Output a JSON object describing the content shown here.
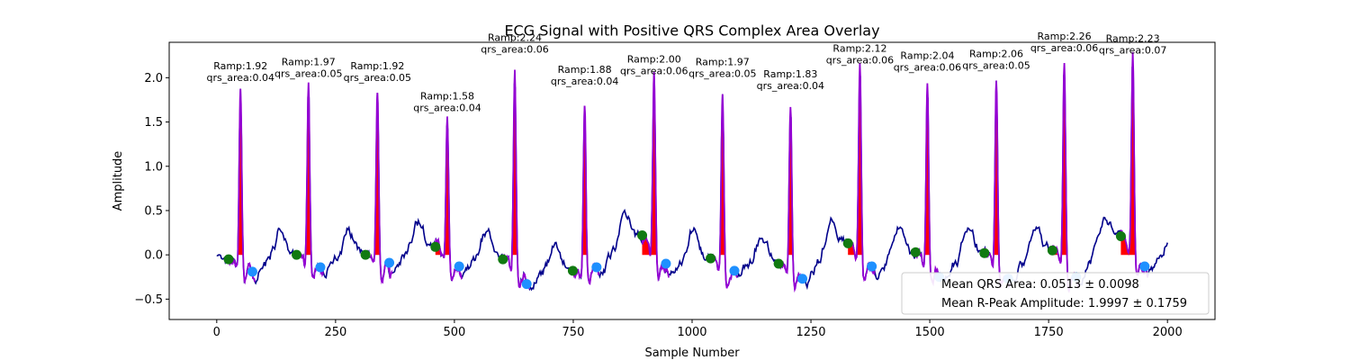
{
  "chart_data": {
    "type": "line",
    "title": "ECG Signal with Positive QRS Complex Area Overlay",
    "xlabel": "Sample Number",
    "ylabel": "Amplitude",
    "xlim": [
      -100,
      2100
    ],
    "ylim": [
      -0.73,
      2.4
    ],
    "xticks": [
      0,
      250,
      500,
      750,
      1000,
      1250,
      1500,
      1750,
      2000
    ],
    "yticks": [
      -0.5,
      0.0,
      0.5,
      1.0,
      1.5,
      2.0
    ],
    "ytick_labels": [
      "−0.5",
      "0.0",
      "0.5",
      "1.0",
      "1.5",
      "2.0"
    ],
    "grid": false,
    "colors": {
      "signal": "#00008b",
      "qrs_segment": "#9400d3",
      "qrs_fill": "#ff0000",
      "onset_marker": "#117a11",
      "offset_marker": "#1e90ff"
    },
    "beats": [
      {
        "r": 50,
        "ramp": 1.92,
        "ramp_label": "Ramp:1.92",
        "area_label": "qrs_area:0.04",
        "onset": [
          25,
          -0.05
        ],
        "offset": [
          75,
          -0.19
        ],
        "base": 0.0
      },
      {
        "r": 193,
        "ramp": 1.97,
        "ramp_label": "Ramp:1.97",
        "area_label": "qrs_area:0.05",
        "onset": [
          168,
          0.0
        ],
        "offset": [
          218,
          -0.14
        ],
        "base": 0.0
      },
      {
        "r": 338,
        "ramp": 1.92,
        "ramp_label": "Ramp:1.92",
        "area_label": "qrs_area:0.05",
        "onset": [
          313,
          0.0
        ],
        "offset": [
          363,
          -0.09
        ],
        "base": 0.0
      },
      {
        "r": 485,
        "ramp": 1.58,
        "ramp_label": "Ramp:1.58",
        "area_label": "qrs_area:0.04",
        "onset": [
          460,
          0.09
        ],
        "offset": [
          510,
          -0.13
        ],
        "base": 0.0
      },
      {
        "r": 627,
        "ramp": 2.24,
        "ramp_label": "Ramp:2.24",
        "area_label": "qrs_area:0.06",
        "onset": [
          602,
          -0.05
        ],
        "offset": [
          652,
          -0.33
        ],
        "base": 0.0
      },
      {
        "r": 774,
        "ramp": 1.88,
        "ramp_label": "Ramp:1.88",
        "area_label": "qrs_area:0.04",
        "onset": [
          749,
          -0.18
        ],
        "offset": [
          799,
          -0.14
        ],
        "base": 0.0
      },
      {
        "r": 920,
        "ramp": 2.0,
        "ramp_label": "Ramp:2.00",
        "area_label": "qrs_area:0.06",
        "onset": [
          895,
          0.22
        ],
        "offset": [
          945,
          -0.1
        ],
        "base": 0.0
      },
      {
        "r": 1064,
        "ramp": 1.97,
        "ramp_label": "Ramp:1.97",
        "area_label": "qrs_area:0.05",
        "onset": [
          1039,
          -0.04
        ],
        "offset": [
          1089,
          -0.18
        ],
        "base": 0.0
      },
      {
        "r": 1207,
        "ramp": 1.83,
        "ramp_label": "Ramp:1.83",
        "area_label": "qrs_area:0.04",
        "onset": [
          1182,
          -0.1
        ],
        "offset": [
          1232,
          -0.27
        ],
        "base": 0.0
      },
      {
        "r": 1353,
        "ramp": 2.12,
        "ramp_label": "Ramp:2.12",
        "area_label": "qrs_area:0.06",
        "onset": [
          1328,
          0.13
        ],
        "offset": [
          1378,
          -0.13
        ],
        "base": 0.0
      },
      {
        "r": 1495,
        "ramp": 2.04,
        "ramp_label": "Ramp:2.04",
        "area_label": "qrs_area:0.06",
        "onset": [
          1470,
          0.03
        ],
        "offset": [
          1520,
          -0.25
        ],
        "base": 0.0
      },
      {
        "r": 1640,
        "ramp": 2.06,
        "ramp_label": "Ramp:2.06",
        "area_label": "qrs_area:0.05",
        "onset": [
          1615,
          0.02
        ],
        "offset": [
          1665,
          -0.27
        ],
        "base": 0.0
      },
      {
        "r": 1783,
        "ramp": 2.26,
        "ramp_label": "Ramp:2.26",
        "area_label": "qrs_area:0.06",
        "onset": [
          1758,
          0.05
        ],
        "offset": [
          1808,
          -0.25
        ],
        "base": 0.0
      },
      {
        "r": 1927,
        "ramp": 2.23,
        "ramp_label": "Ramp:2.23",
        "area_label": "qrs_area:0.07",
        "onset": [
          1902,
          0.21
        ],
        "offset": [
          1952,
          -0.13
        ],
        "base": 0.0
      }
    ],
    "legend": {
      "placement": "lower-right",
      "entries": [
        "Mean QRS Area: 0.0513 ± 0.0098",
        "Mean R-Peak Amplitude: 1.9997 ± 0.1759"
      ]
    }
  }
}
